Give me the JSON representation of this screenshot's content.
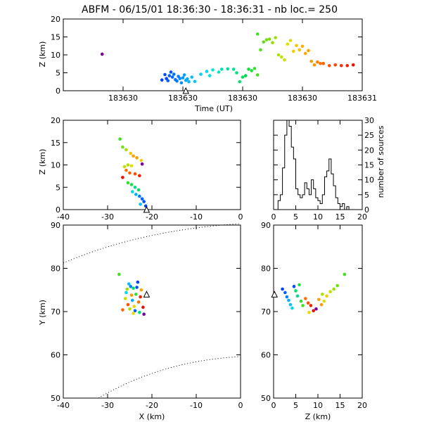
{
  "title": "ABFM - 06/15/01 18:36:30 - 18:36:31 - nb loc.=     250",
  "chart_data": [
    {
      "id": "time_height",
      "type": "scatter",
      "xlabel": "Time (UT)",
      "ylabel": "Z (km)",
      "xlim": [
        0.0,
        1.0
      ],
      "ylim": [
        0,
        20
      ],
      "x_ticks": [
        {
          "v": 0.0,
          "label": ""
        },
        {
          "v": 0.2,
          "label": "183630"
        },
        {
          "v": 0.4,
          "label": "183630"
        },
        {
          "v": 0.6,
          "label": "183630"
        },
        {
          "v": 0.8,
          "label": "183630"
        },
        {
          "v": 1.0,
          "label": "183631"
        }
      ],
      "y_ticks": [
        0,
        5,
        10,
        15,
        20
      ],
      "marker": {
        "type": "triangle",
        "x": 0.41,
        "y": 0
      },
      "points": [
        [
          0.13,
          10.2,
          "#7a00a0"
        ],
        [
          0.33,
          3.0,
          "#0040ff"
        ],
        [
          0.34,
          4.5,
          "#0050ff"
        ],
        [
          0.345,
          3.4,
          "#0048ff"
        ],
        [
          0.35,
          2.8,
          "#0060ff"
        ],
        [
          0.355,
          4.2,
          "#0060ff"
        ],
        [
          0.36,
          5.2,
          "#0055ff"
        ],
        [
          0.365,
          3.8,
          "#0068ff"
        ],
        [
          0.37,
          4.6,
          "#0070ff"
        ],
        [
          0.375,
          3.1,
          "#0075ff"
        ],
        [
          0.38,
          2.7,
          "#0078ff"
        ],
        [
          0.385,
          4.0,
          "#0080ff"
        ],
        [
          0.39,
          3.4,
          "#0088ff"
        ],
        [
          0.395,
          2.2,
          "#0090ff"
        ],
        [
          0.4,
          3.6,
          "#0098ff"
        ],
        [
          0.405,
          4.4,
          "#00a0ff"
        ],
        [
          0.41,
          2.9,
          "#00a8ff"
        ],
        [
          0.415,
          3.3,
          "#00b0ff"
        ],
        [
          0.42,
          2.5,
          "#00b8ff"
        ],
        [
          0.43,
          3.8,
          "#00c0ff"
        ],
        [
          0.44,
          2.6,
          "#00c8ff"
        ],
        [
          0.46,
          4.6,
          "#00d0f0"
        ],
        [
          0.48,
          5.4,
          "#00d8e8"
        ],
        [
          0.49,
          4.2,
          "#00e0e0"
        ],
        [
          0.5,
          5.8,
          "#00e8d0"
        ],
        [
          0.52,
          5.2,
          "#00e8c0"
        ],
        [
          0.53,
          6.0,
          "#00e0b0"
        ],
        [
          0.55,
          6.1,
          "#00e0a0"
        ],
        [
          0.57,
          6.0,
          "#00e090"
        ],
        [
          0.58,
          5.0,
          "#00e080"
        ],
        [
          0.59,
          2.5,
          "#00e070"
        ],
        [
          0.6,
          3.8,
          "#00e060"
        ],
        [
          0.61,
          4.2,
          "#00d850"
        ],
        [
          0.62,
          6.0,
          "#10e040"
        ],
        [
          0.63,
          5.6,
          "#20e040"
        ],
        [
          0.64,
          6.2,
          "#30e030"
        ],
        [
          0.65,
          4.4,
          "#40e020"
        ],
        [
          0.65,
          15.8,
          "#40e020"
        ],
        [
          0.66,
          11.4,
          "#50e020"
        ],
        [
          0.67,
          13.6,
          "#60e010"
        ],
        [
          0.68,
          14.2,
          "#70e010"
        ],
        [
          0.69,
          14.4,
          "#80e000"
        ],
        [
          0.7,
          13.4,
          "#90e000"
        ],
        [
          0.71,
          14.8,
          "#a0e000"
        ],
        [
          0.72,
          10.0,
          "#b0e000"
        ],
        [
          0.73,
          9.4,
          "#c0e000"
        ],
        [
          0.74,
          8.6,
          "#d0e000"
        ],
        [
          0.75,
          13.0,
          "#e0e000"
        ],
        [
          0.76,
          14.0,
          "#e8d800"
        ],
        [
          0.77,
          11.0,
          "#f0d000"
        ],
        [
          0.78,
          12.6,
          "#f0c800"
        ],
        [
          0.79,
          11.4,
          "#f8c000"
        ],
        [
          0.8,
          12.4,
          "#f8b000"
        ],
        [
          0.81,
          10.4,
          "#ffa800"
        ],
        [
          0.82,
          11.2,
          "#ffa000"
        ],
        [
          0.83,
          8.2,
          "#ff9800"
        ],
        [
          0.84,
          7.2,
          "#ff9000"
        ],
        [
          0.85,
          8.0,
          "#ff8000"
        ],
        [
          0.86,
          7.6,
          "#ff7000"
        ],
        [
          0.87,
          7.6,
          "#ff6000"
        ],
        [
          0.89,
          7.0,
          "#ff5000"
        ],
        [
          0.91,
          7.2,
          "#ff4000"
        ],
        [
          0.93,
          7.0,
          "#f83000"
        ],
        [
          0.95,
          7.0,
          "#f02000"
        ],
        [
          0.97,
          7.2,
          "#e81000"
        ]
      ]
    },
    {
      "id": "x_z",
      "type": "scatter",
      "xlabel": "",
      "ylabel": "Z (km)",
      "xlim": [
        -40,
        0
      ],
      "ylim": [
        0,
        20
      ],
      "x_ticks": [
        -40,
        -30,
        -20,
        -10,
        0
      ],
      "y_ticks": [
        0,
        5,
        10,
        15,
        20
      ],
      "marker": {
        "type": "triangle",
        "x": -21.2,
        "y": 0
      },
      "points": [
        [
          -27.2,
          15.8,
          "#40e020"
        ],
        [
          -26.6,
          14.0,
          "#70e010"
        ],
        [
          -25.8,
          13.4,
          "#a0e000"
        ],
        [
          -24.8,
          12.6,
          "#f0c800"
        ],
        [
          -24.2,
          12.0,
          "#ffa000"
        ],
        [
          -23.4,
          11.6,
          "#ff9800"
        ],
        [
          -22.4,
          11.0,
          "#f0d000"
        ],
        [
          -25.4,
          10.0,
          "#b0e000"
        ],
        [
          -24.6,
          9.8,
          "#e0e000"
        ],
        [
          -22.2,
          10.2,
          "#7a00a0"
        ],
        [
          -26.2,
          9.6,
          "#c0e000"
        ],
        [
          -25.8,
          8.8,
          "#ff7000"
        ],
        [
          -25.0,
          8.2,
          "#ff6000"
        ],
        [
          -23.8,
          8.0,
          "#ff5000"
        ],
        [
          -22.8,
          7.6,
          "#f02000"
        ],
        [
          -26.6,
          7.2,
          "#e81000"
        ],
        [
          -25.4,
          6.0,
          "#30e030"
        ],
        [
          -24.6,
          5.6,
          "#20e040"
        ],
        [
          -23.8,
          5.0,
          "#00e080"
        ],
        [
          -23.0,
          4.4,
          "#00e060"
        ],
        [
          -24.4,
          4.0,
          "#00d8e8"
        ],
        [
          -23.6,
          3.4,
          "#00b0ff"
        ],
        [
          -22.8,
          3.0,
          "#0080ff"
        ],
        [
          -22.2,
          2.4,
          "#0060ff"
        ],
        [
          -21.8,
          1.8,
          "#0050ff"
        ],
        [
          -22.6,
          1.2,
          "#00c0ff"
        ],
        [
          -21.4,
          0.8,
          "#0040ff"
        ]
      ]
    },
    {
      "id": "height_histogram",
      "type": "histogram",
      "xlabel": "",
      "ylabel": "number of sources",
      "xlim": [
        0,
        20
      ],
      "ylim": [
        0,
        30
      ],
      "x_ticks": [
        0,
        5,
        10,
        15,
        20
      ],
      "y_ticks": [
        0,
        5,
        10,
        15,
        20,
        25,
        30
      ],
      "bin_width": 0.5,
      "bins_start": 0,
      "counts": [
        0,
        0,
        3,
        5,
        14,
        25,
        30,
        28,
        21,
        17,
        7,
        5,
        4,
        5,
        9,
        7,
        5,
        10,
        7,
        4,
        3,
        2,
        5,
        11,
        13,
        17,
        12,
        8,
        4,
        2,
        1,
        2,
        0,
        1,
        0,
        0,
        0,
        0,
        0,
        0
      ]
    },
    {
      "id": "x_y",
      "type": "scatter",
      "xlabel": "X (km)",
      "ylabel": "Y (km)",
      "xlim": [
        -40,
        0
      ],
      "ylim": [
        50,
        90
      ],
      "x_ticks": [
        -40,
        -30,
        -20,
        -10,
        0
      ],
      "y_ticks": [
        50,
        60,
        70,
        80,
        90
      ],
      "marker": {
        "type": "triangle",
        "x": -21.2,
        "y": 74.0
      },
      "points": [
        [
          -27.4,
          78.6,
          "#40e020"
        ],
        [
          -25.2,
          76.4,
          "#00c0ff"
        ],
        [
          -24.8,
          75.8,
          "#0080ff"
        ],
        [
          -24.2,
          75.4,
          "#00e060"
        ],
        [
          -23.4,
          75.6,
          "#0050ff"
        ],
        [
          -22.4,
          75.0,
          "#ffa000"
        ],
        [
          -25.8,
          74.4,
          "#00d8e8"
        ],
        [
          -23.6,
          74.0,
          "#30e030"
        ],
        [
          -22.6,
          73.4,
          "#f02000"
        ],
        [
          -26.0,
          73.0,
          "#c0e000"
        ],
        [
          -24.4,
          72.6,
          "#00b0ff"
        ],
        [
          -23.0,
          72.2,
          "#ff7000"
        ],
        [
          -25.4,
          71.6,
          "#ff5000"
        ],
        [
          -24.0,
          71.2,
          "#f0d000"
        ],
        [
          -22.0,
          71.0,
          "#e81000"
        ],
        [
          -26.6,
          70.4,
          "#ff6000"
        ],
        [
          -25.0,
          70.6,
          "#b0e000"
        ],
        [
          -23.8,
          70.2,
          "#0060ff"
        ],
        [
          -22.8,
          69.8,
          "#00e080"
        ],
        [
          -21.8,
          69.4,
          "#7a00a0"
        ],
        [
          -24.6,
          73.8,
          "#ff9800"
        ],
        [
          -23.2,
          76.8,
          "#0040ff"
        ],
        [
          -25.6,
          75.2,
          "#a0e000"
        ],
        [
          -24.2,
          69.6,
          "#e0e000"
        ]
      ]
    },
    {
      "id": "z_y",
      "type": "scatter",
      "xlabel": "Z (km)",
      "ylabel": "",
      "xlim": [
        0,
        20
      ],
      "ylim": [
        50,
        90
      ],
      "x_ticks": [
        0,
        5,
        10,
        15,
        20
      ],
      "y_ticks": [
        50,
        60,
        70,
        80,
        90
      ],
      "marker": {
        "type": "triangle",
        "x": 0.2,
        "y": 74.0
      },
      "points": [
        [
          2.0,
          75.2,
          "#0040ff"
        ],
        [
          2.6,
          74.4,
          "#0060ff"
        ],
        [
          3.0,
          73.4,
          "#0080ff"
        ],
        [
          3.4,
          72.6,
          "#00b0ff"
        ],
        [
          3.8,
          71.6,
          "#00c0ff"
        ],
        [
          4.2,
          70.8,
          "#00d8e8"
        ],
        [
          4.6,
          75.8,
          "#0050ff"
        ],
        [
          5.0,
          74.8,
          "#00e060"
        ],
        [
          5.4,
          73.6,
          "#00e080"
        ],
        [
          5.8,
          76.2,
          "#20e040"
        ],
        [
          6.2,
          72.4,
          "#30e030"
        ],
        [
          6.6,
          71.4,
          "#40e020"
        ],
        [
          7.2,
          73.0,
          "#ff7000"
        ],
        [
          7.8,
          72.0,
          "#ff5000"
        ],
        [
          8.4,
          71.4,
          "#f02000"
        ],
        [
          9.0,
          70.2,
          "#e81000"
        ],
        [
          9.6,
          70.6,
          "#7a00a0"
        ],
        [
          10.2,
          72.8,
          "#ffa000"
        ],
        [
          10.8,
          71.6,
          "#ff9800"
        ],
        [
          11.4,
          72.4,
          "#e0e000"
        ],
        [
          12.0,
          73.6,
          "#f0d000"
        ],
        [
          12.8,
          74.6,
          "#c0e000"
        ],
        [
          13.6,
          75.2,
          "#a0e000"
        ],
        [
          14.4,
          76.0,
          "#70e010"
        ],
        [
          16.0,
          78.6,
          "#40e020"
        ],
        [
          8.0,
          69.8,
          "#e8d800"
        ],
        [
          11.0,
          74.0,
          "#b0e000"
        ]
      ]
    }
  ]
}
